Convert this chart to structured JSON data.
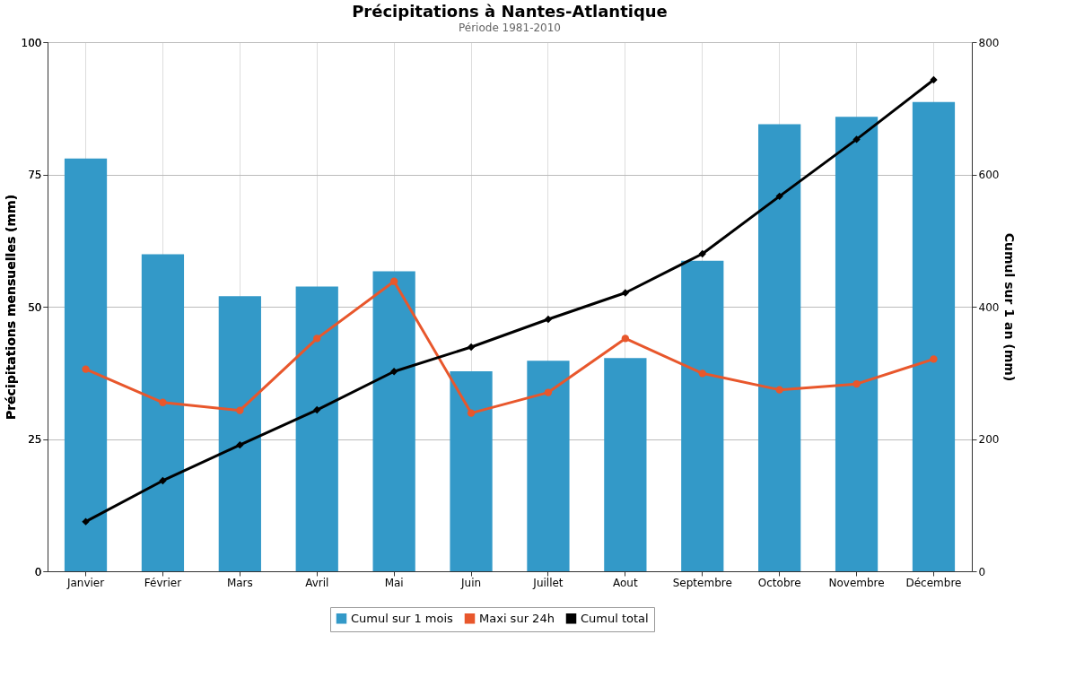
{
  "chart_data": {
    "type": "bar",
    "title": "Précipitations à Nantes-Atlantique",
    "subtitle": "Période 1981-2010",
    "ylabel": "Précipitations mensuelles (mm)",
    "y2label": "Cumul sur 1 an (mm)",
    "categories": [
      "Janvier",
      "Février",
      "Mars",
      "Avril",
      "Mai",
      "Juin",
      "Juillet",
      "Aout",
      "Septembre",
      "Octobre",
      "Novembre",
      "Décembre"
    ],
    "series": [
      {
        "name": "Cumul sur 1 mois",
        "color": "#3399c8",
        "values": [
          78.0,
          59.9,
          52.0,
          53.8,
          56.7,
          37.8,
          39.8,
          40.3,
          58.7,
          84.5,
          85.9,
          88.7
        ]
      },
      {
        "name": "Maxi sur 24h",
        "type": "line",
        "color": "#e8572c",
        "marker": "circle",
        "values": [
          38.2,
          31.9,
          30.4,
          44.0,
          54.8,
          29.9,
          33.8,
          44.0,
          37.4,
          34.3,
          35.4,
          40.1
        ]
      },
      {
        "name": "Cumul total",
        "type": "line",
        "axis": "y2",
        "color": "#000000",
        "marker": "diamond",
        "values": [
          75,
          137,
          191,
          244,
          302,
          339,
          381,
          421,
          480,
          567,
          653,
          743
        ]
      }
    ],
    "ylim": [
      0,
      100
    ],
    "yticks": [
      0,
      25,
      50,
      75,
      100
    ],
    "y2lim": [
      0,
      800
    ],
    "y2ticks": [
      0,
      200,
      400,
      600,
      800
    ],
    "grid": true,
    "legend": "bottom"
  }
}
